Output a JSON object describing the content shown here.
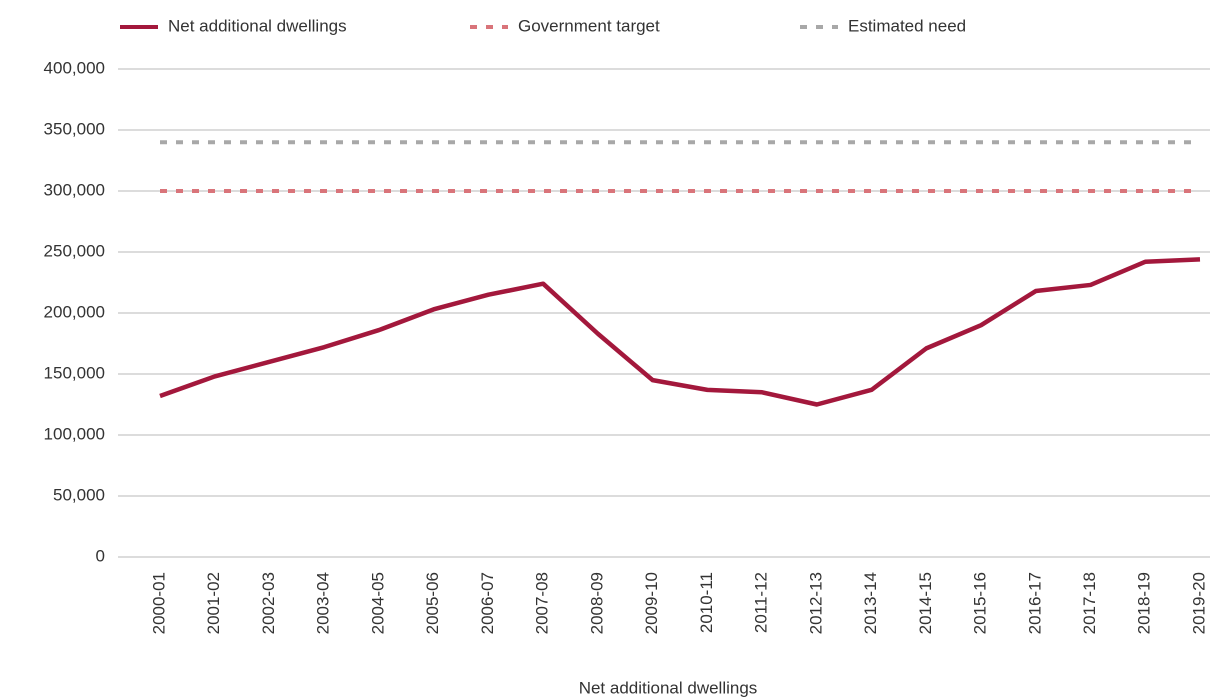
{
  "chart_data": {
    "type": "line",
    "x_label": "Net additional dwellings",
    "categories": [
      "2000-01",
      "2001-02",
      "2002-03",
      "2003-04",
      "2004-05",
      "2005-06",
      "2006-07",
      "2007-08",
      "2008-09",
      "2009-10",
      "2010-11",
      "2011-12",
      "2012-13",
      "2013-14",
      "2014-15",
      "2015-16",
      "2016-17",
      "2017-18",
      "2018-19",
      "2019-20"
    ],
    "series": [
      {
        "name": "Net additional dwellings",
        "color": "#a3183c",
        "dashed": false,
        "values": [
          132000,
          148000,
          160000,
          172000,
          186000,
          203000,
          215000,
          224000,
          183000,
          145000,
          137000,
          135000,
          125000,
          137000,
          171000,
          190000,
          218000,
          223000,
          242000,
          244000
        ]
      },
      {
        "name": "Government target",
        "color": "#d9747a",
        "dashed": true,
        "values": [
          300000,
          300000,
          300000,
          300000,
          300000,
          300000,
          300000,
          300000,
          300000,
          300000,
          300000,
          300000,
          300000,
          300000,
          300000,
          300000,
          300000,
          300000,
          300000,
          300000
        ]
      },
      {
        "name": "Estimated need",
        "color": "#a8a8a8",
        "dashed": true,
        "values": [
          340000,
          340000,
          340000,
          340000,
          340000,
          340000,
          340000,
          340000,
          340000,
          340000,
          340000,
          340000,
          340000,
          340000,
          340000,
          340000,
          340000,
          340000,
          340000,
          340000
        ]
      }
    ],
    "ylim": [
      0,
      400000
    ],
    "yticks": [
      0,
      {
        "value": 50000,
        "label": "50,000"
      },
      {
        "value": 100000,
        "label": "100,000"
      },
      {
        "value": 150000,
        "label": "150,000"
      },
      {
        "value": 200000,
        "label": "200,000"
      },
      {
        "value": 250000,
        "label": "250,000"
      },
      {
        "value": 300000,
        "label": "300,000"
      },
      {
        "value": 350000,
        "label": "350,000"
      },
      {
        "value": 400000,
        "label": "400,000"
      }
    ],
    "grid": true,
    "legend": "top"
  }
}
